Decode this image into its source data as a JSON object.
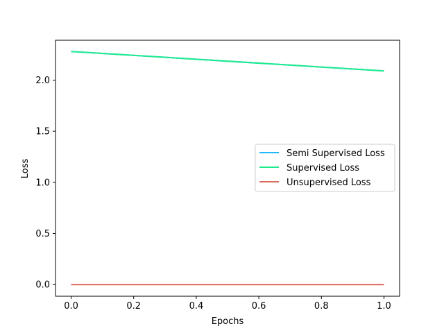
{
  "chart_data": {
    "type": "line",
    "title": "",
    "xlabel": "Epochs",
    "ylabel": "Loss",
    "x": [
      0.0,
      1.0
    ],
    "xlim": [
      -0.05,
      1.05
    ],
    "ylim": [
      -0.114,
      2.39
    ],
    "xticks": [
      0.0,
      0.2,
      0.4,
      0.6,
      0.8,
      1.0
    ],
    "xtick_labels": [
      "0.0",
      "0.2",
      "0.4",
      "0.6",
      "0.8",
      "1.0"
    ],
    "yticks": [
      0.0,
      0.5,
      1.0,
      1.5,
      2.0
    ],
    "ytick_labels": [
      "0.0",
      "0.5",
      "1.0",
      "1.5",
      "2.0"
    ],
    "grid": false,
    "legend_position": "center-right",
    "series": [
      {
        "name": "Semi Supervised Loss",
        "values": [
          2.28,
          2.09
        ],
        "color": "#1fb8ff"
      },
      {
        "name": "Supervised Loss",
        "values": [
          2.28,
          2.09
        ],
        "color": "#1eeb8c"
      },
      {
        "name": "Unsupervised Loss",
        "values": [
          0.0,
          0.0
        ],
        "color": "#d9695d"
      }
    ]
  }
}
